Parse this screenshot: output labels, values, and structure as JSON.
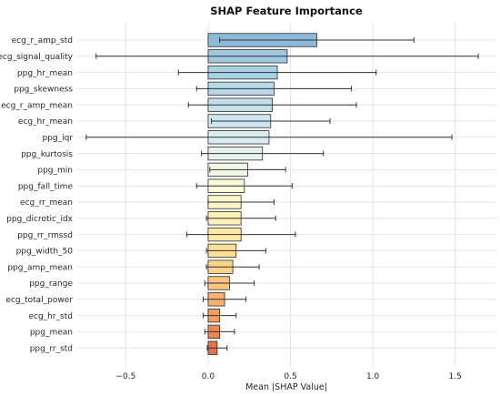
{
  "chart_data": {
    "type": "bar",
    "orientation": "horizontal",
    "title": "SHAP Feature Importance",
    "xlabel": "Mean |SHAP Value|",
    "ylabel": "",
    "xlim": [
      -0.8,
      1.75
    ],
    "xticks": [
      -0.5,
      0.0,
      0.5,
      1.0,
      1.5
    ],
    "xtick_labels": [
      "−0.5",
      "0.0",
      "0.5",
      "1.0",
      "1.5"
    ],
    "grid": true,
    "categories": [
      "ecg_r_amp_std",
      "ecg_signal_quality",
      "ppg_hr_mean",
      "ppg_skewness",
      "ecg_r_amp_mean",
      "ecg_hr_mean",
      "ppg_iqr",
      "ppg_kurtosis",
      "ppg_min",
      "ppg_fall_time",
      "ecg_rr_mean",
      "ppg_dicrotic_idx",
      "ppg_rr_rmssd",
      "ppg_width_50",
      "ppg_amp_mean",
      "ppg_range",
      "ecg_total_power",
      "ecg_hr_std",
      "ppg_mean",
      "ppg_rr_std"
    ],
    "values": [
      0.66,
      0.48,
      0.42,
      0.4,
      0.39,
      0.38,
      0.37,
      0.33,
      0.24,
      0.22,
      0.2,
      0.2,
      0.2,
      0.17,
      0.15,
      0.13,
      0.1,
      0.07,
      0.07,
      0.055
    ],
    "errors": [
      0.59,
      1.16,
      0.6,
      0.47,
      0.51,
      0.36,
      1.11,
      0.37,
      0.23,
      0.29,
      0.2,
      0.21,
      0.33,
      0.18,
      0.16,
      0.15,
      0.13,
      0.1,
      0.09,
      0.06
    ],
    "colors": [
      "#8fb9d9",
      "#9fc7e0",
      "#aad0e4",
      "#b6d8e8",
      "#c2dfeb",
      "#cde6ef",
      "#d9ecf0",
      "#e6f2f0",
      "#f2f8e8",
      "#fbfbd8",
      "#fef6c6",
      "#fef0b6",
      "#feeaa6",
      "#fde096",
      "#fdd28b",
      "#fcc47f",
      "#fbb06e",
      "#f69c60",
      "#f08656",
      "#e9704d"
    ]
  }
}
